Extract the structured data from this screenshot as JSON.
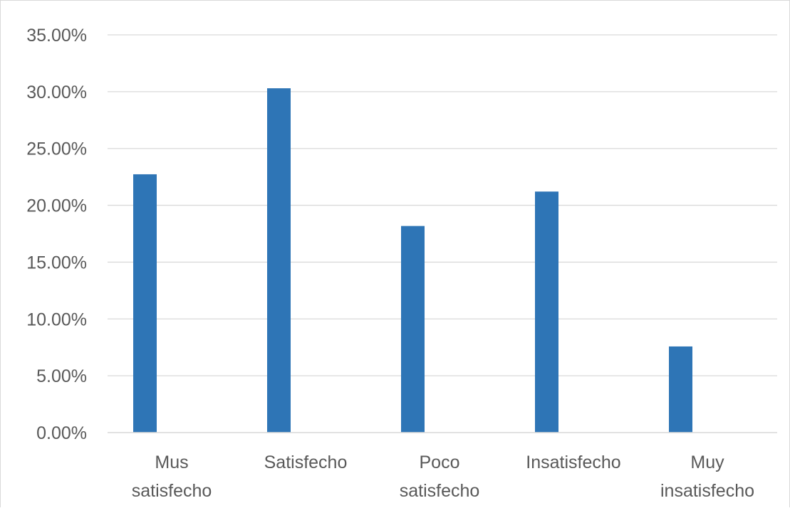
{
  "chart_data": {
    "type": "bar",
    "title": "",
    "xlabel": "",
    "ylabel": "",
    "categories": [
      [
        "Mus",
        "satisfecho"
      ],
      [
        "Satisfecho"
      ],
      [
        "Poco",
        "satisfecho"
      ],
      [
        "Insatisfecho"
      ],
      [
        "Muy",
        "insatisfecho"
      ]
    ],
    "series": [
      {
        "values": [
          22.73,
          30.3,
          18.18,
          21.21,
          7.58
        ],
        "color": "#2e75b6"
      }
    ],
    "ylim": [
      0,
      35
    ],
    "yticks": [
      0,
      5,
      10,
      15,
      20,
      25,
      30,
      35
    ],
    "ytick_labels": [
      "0.00%",
      "5.00%",
      "10.00%",
      "15.00%",
      "20.00%",
      "25.00%",
      "30.00%",
      "35.00%"
    ],
    "grid": true,
    "gridline_color": "#d9d9d9",
    "legend": "none"
  }
}
